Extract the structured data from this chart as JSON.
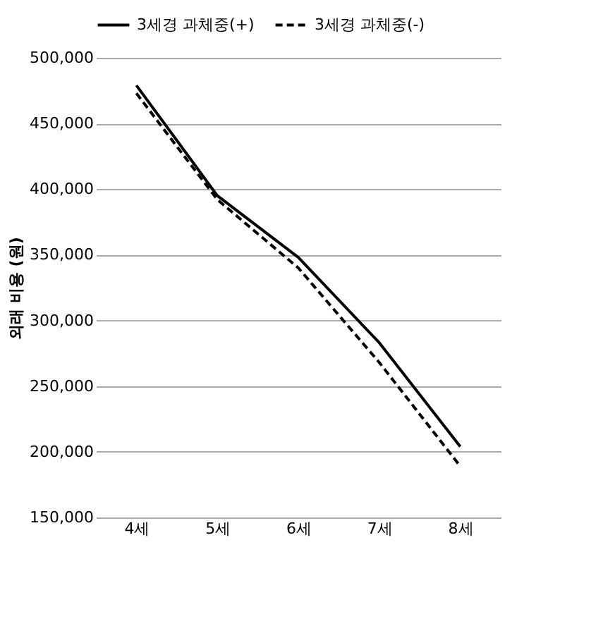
{
  "chart_data": {
    "type": "line",
    "ylabel": "외래 비용 (원)",
    "categories": [
      "4세",
      "5세",
      "6세",
      "7세",
      "8세"
    ],
    "series": [
      {
        "name": "3세경 과체중(+)",
        "color": "#000000",
        "line_style": "solid",
        "values": [
          479000,
          395000,
          348000,
          283000,
          204000
        ]
      },
      {
        "name": "3세경 과체중(-)",
        "color": "#000000",
        "line_style": "dashed",
        "values": [
          473000,
          392000,
          340000,
          268000,
          189000
        ]
      }
    ],
    "ylim": [
      150000,
      500000
    ],
    "yticks": [
      {
        "value": 150000,
        "label": "150,000"
      },
      {
        "value": 200000,
        "label": "200,000"
      },
      {
        "value": 250000,
        "label": "250,000"
      },
      {
        "value": 300000,
        "label": "300,000"
      },
      {
        "value": 350000,
        "label": "350,000"
      },
      {
        "value": 400000,
        "label": "400,000"
      },
      {
        "value": 450000,
        "label": "450,000"
      },
      {
        "value": 500000,
        "label": "500,000"
      }
    ],
    "grid": "y",
    "legend": "top",
    "marker": "none"
  }
}
